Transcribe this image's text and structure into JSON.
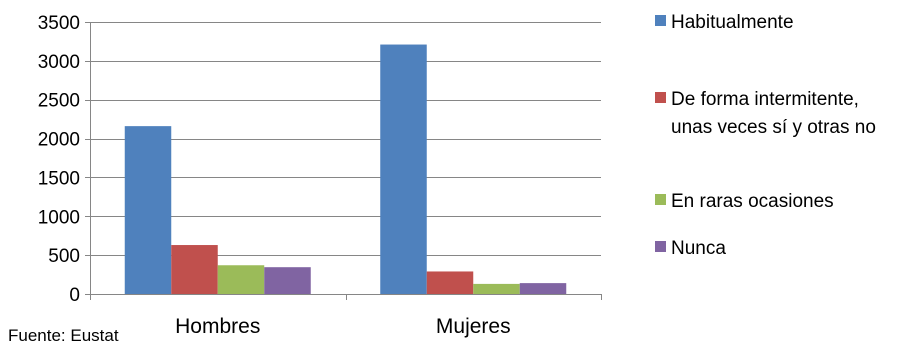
{
  "chart_data": {
    "type": "bar",
    "categories": [
      "Hombres",
      "Mujeres"
    ],
    "series": [
      {
        "name": "Habitualmente",
        "values": [
          2160,
          3210
        ],
        "color": "#4f81bd"
      },
      {
        "name": "De forma intermitente, unas veces sí y otras no",
        "name_lines": [
          "De forma intermitente,",
          "unas veces sí y otras no"
        ],
        "values": [
          630,
          290
        ],
        "color": "#c0504d"
      },
      {
        "name": "En raras ocasiones",
        "values": [
          370,
          130
        ],
        "color": "#9bbb59"
      },
      {
        "name": "Nunca",
        "values": [
          345,
          140
        ],
        "color": "#8064a2"
      }
    ],
    "yticks": [
      0,
      500,
      1000,
      1500,
      2000,
      2500,
      3000,
      3500
    ],
    "ylim": [
      0,
      3500
    ],
    "grid": true,
    "legend_position": "right",
    "source": "Fuente: Eustat"
  }
}
